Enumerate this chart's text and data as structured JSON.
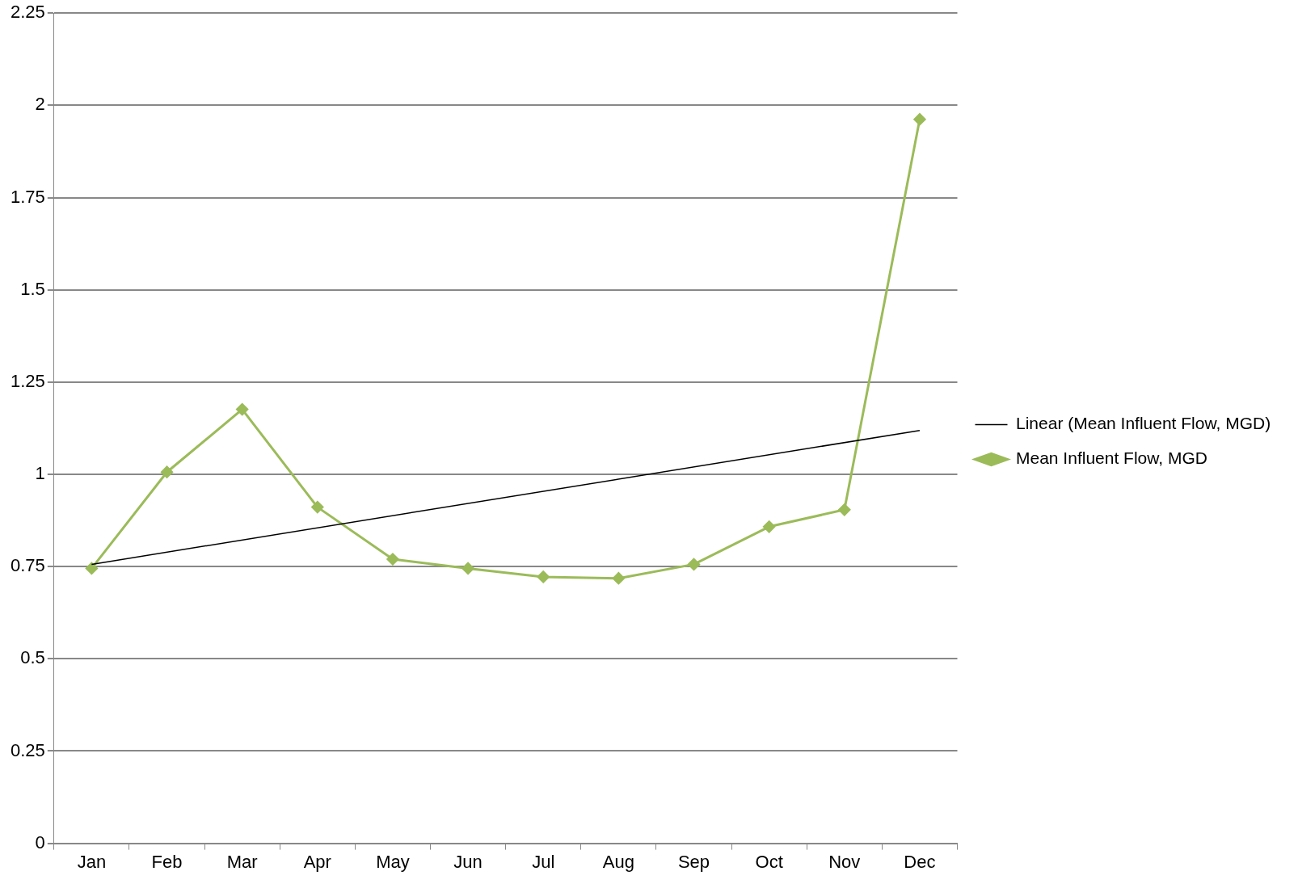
{
  "chart_data": {
    "type": "line",
    "categories": [
      "Jan",
      "Feb",
      "Mar",
      "Apr",
      "May",
      "Jun",
      "Jul",
      "Aug",
      "Sep",
      "Oct",
      "Nov",
      "Dec"
    ],
    "series": [
      {
        "name": "Mean Influent Flow, MGD",
        "color": "#9bbb59",
        "marker": "diamond",
        "values": [
          0.745,
          1.006,
          1.176,
          0.911,
          0.77,
          0.745,
          0.722,
          0.718,
          0.756,
          0.858,
          0.904,
          1.962
        ]
      },
      {
        "name": "Linear (Mean Influent Flow, MGD)",
        "type": "line",
        "color": "#000000",
        "marker": "none",
        "x": [
          "Jan",
          "Dec"
        ],
        "values": [
          0.756,
          1.119
        ]
      }
    ],
    "ylim": [
      0,
      2.25
    ],
    "yticks": [
      0,
      0.25,
      0.5,
      0.75,
      1,
      1.25,
      1.5,
      1.75,
      2,
      2.25
    ],
    "grid": "y",
    "legend": "right",
    "line_style": "solid"
  }
}
